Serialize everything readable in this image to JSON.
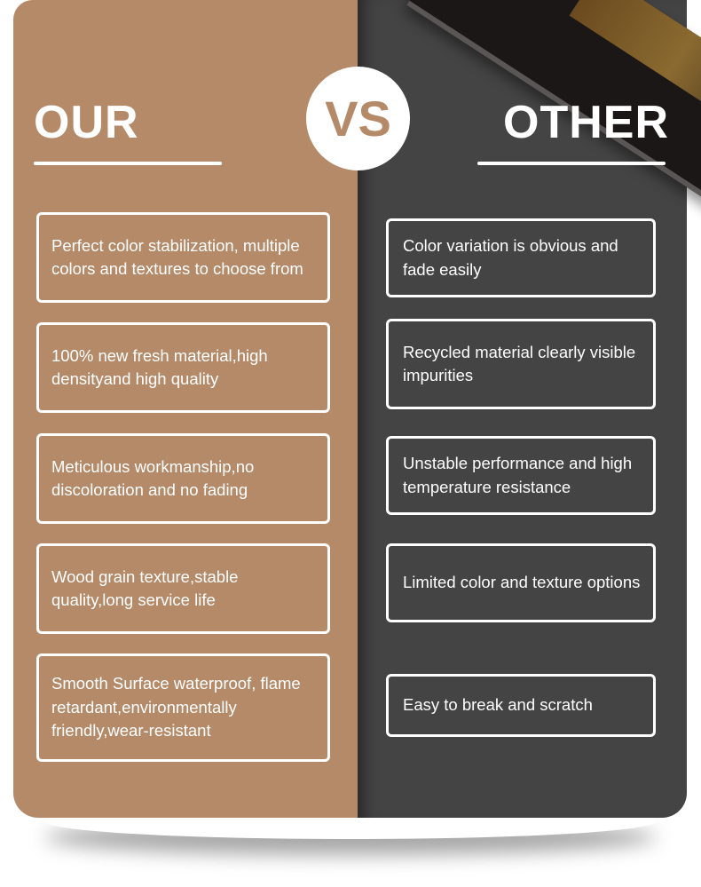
{
  "header": {
    "left_title": "OUR",
    "vs_label": "VS",
    "right_title": "OTHER"
  },
  "colors": {
    "ours": "#b58a69",
    "other": "#444444",
    "text": "#ffffff"
  },
  "ours": [
    "Perfect color stabilization, multiple colors and textures to choose from",
    "100% new fresh material,high densityand high quality",
    "Meticulous workmanship,no discoloration and no fading",
    "Wood grain texture,stable quality,long service life",
    "Smooth Surface waterproof, flame retardant,environmentally friendly,wear-resistant"
  ],
  "other": [
    "Color variation is obvious and fade easily",
    "Recycled material clearly visible impurities",
    "Unstable performance and high temperature resistance",
    "Limited color and texture options",
    "Easy to break and scratch"
  ]
}
